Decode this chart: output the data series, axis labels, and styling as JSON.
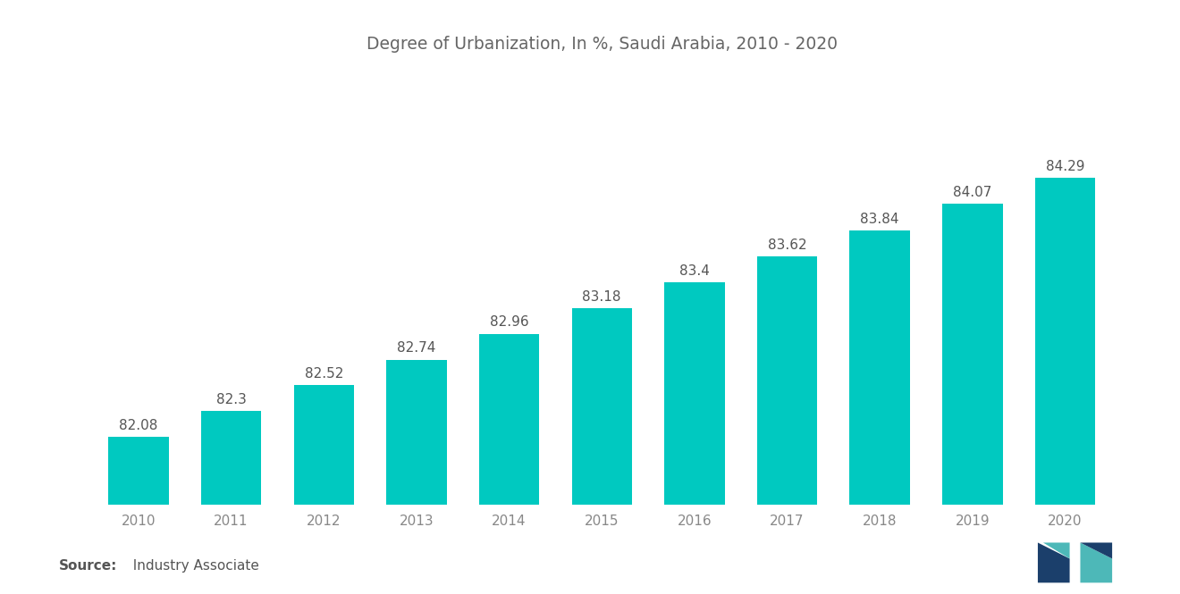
{
  "title": "Degree of Urbanization, In %, Saudi Arabia, 2010 - 2020",
  "years": [
    2010,
    2011,
    2012,
    2013,
    2014,
    2015,
    2016,
    2017,
    2018,
    2019,
    2020
  ],
  "values": [
    82.08,
    82.3,
    82.52,
    82.74,
    82.96,
    83.18,
    83.4,
    83.62,
    83.84,
    84.07,
    84.29
  ],
  "bar_color": "#00C9C0",
  "background_color": "#ffffff",
  "title_color": "#666666",
  "label_color": "#555555",
  "tick_color": "#888888",
  "source_bold": "Source:",
  "source_text": "  Industry Associate",
  "ylim_min": 81.5,
  "ylim_max": 85.2,
  "bar_bottom": 0,
  "bar_width": 0.65,
  "title_fontsize": 13.5,
  "label_fontsize": 11,
  "tick_fontsize": 11,
  "source_fontsize": 11
}
